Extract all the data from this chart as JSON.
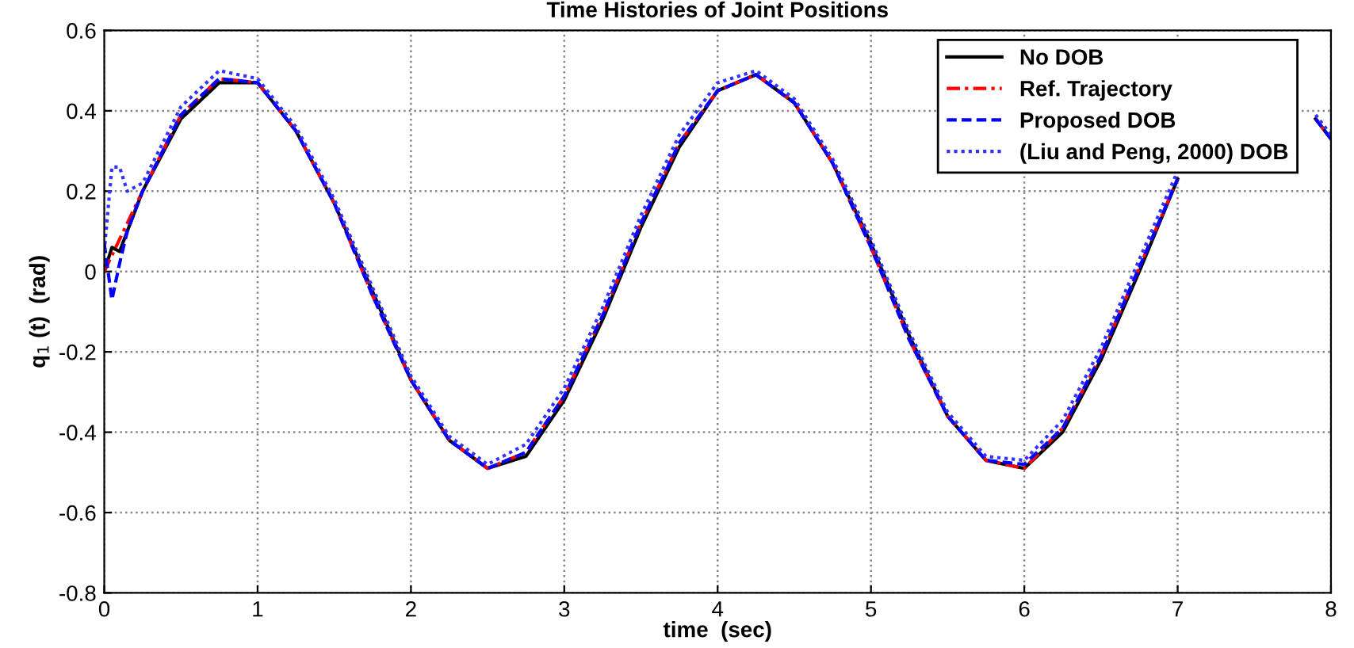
{
  "chart_data": {
    "type": "line",
    "title": "Time Histories of Joint Positions",
    "xlabel": "time  (sec)",
    "ylabel": "q$_{1}$ (t)  (rad)",
    "x": [
      0,
      0.05,
      0.1,
      0.15,
      0.25,
      0.5,
      0.75,
      1.0,
      1.25,
      1.5,
      1.75,
      2.0,
      2.25,
      2.5,
      2.75,
      3.0,
      3.25,
      3.5,
      3.75,
      4.0,
      4.25,
      4.5,
      4.75,
      5.0,
      5.25,
      5.5,
      5.75,
      6.0,
      6.25,
      6.5,
      6.75,
      7.0,
      7.25,
      7.5,
      7.75,
      7.9,
      8.0
    ],
    "series": [
      {
        "name": "No DOB",
        "color": "#000000",
        "line_style": "solid",
        "values": [
          0,
          0.06,
          0.05,
          0.1,
          0.2,
          0.38,
          0.47,
          0.47,
          0.35,
          0.17,
          -0.05,
          -0.27,
          -0.42,
          -0.49,
          -0.46,
          -0.32,
          -0.12,
          0.11,
          0.31,
          0.45,
          0.49,
          0.42,
          0.27,
          0.07,
          -0.16,
          -0.36,
          -0.47,
          -0.49,
          -0.4,
          -0.22,
          0,
          0.23,
          null,
          null,
          null,
          0.38,
          0.33
        ]
      },
      {
        "name": "Ref. Trajectory",
        "color": "#ff0000",
        "line_style": "dashdot",
        "values": [
          0,
          0.04,
          0.08,
          0.12,
          0.2,
          0.39,
          0.48,
          0.47,
          0.35,
          0.17,
          -0.06,
          -0.27,
          -0.42,
          -0.49,
          -0.45,
          -0.31,
          -0.11,
          0.12,
          0.32,
          0.45,
          0.49,
          0.42,
          0.27,
          0.06,
          -0.17,
          -0.36,
          -0.47,
          -0.49,
          -0.39,
          -0.21,
          0.01,
          0.23,
          null,
          null,
          null,
          0.38,
          0.33
        ]
      },
      {
        "name": "Proposed DOB",
        "color": "#0000ff",
        "line_style": "dashed",
        "values": [
          0.07,
          -0.07,
          0.02,
          0.1,
          0.2,
          0.39,
          0.48,
          0.47,
          0.35,
          0.17,
          -0.06,
          -0.27,
          -0.42,
          -0.49,
          -0.45,
          -0.31,
          -0.11,
          0.12,
          0.32,
          0.45,
          0.49,
          0.42,
          0.27,
          0.06,
          -0.17,
          -0.36,
          -0.47,
          -0.48,
          -0.39,
          -0.21,
          0.01,
          0.23,
          null,
          null,
          null,
          0.38,
          0.33
        ]
      },
      {
        "name": "(Liu and Peng, 2000) DOB",
        "color": "#3333ff",
        "line_style": "dotted",
        "values": [
          0.05,
          0.26,
          0.26,
          0.2,
          0.22,
          0.41,
          0.5,
          0.48,
          0.36,
          0.18,
          -0.04,
          -0.26,
          -0.41,
          -0.48,
          -0.43,
          -0.29,
          -0.09,
          0.14,
          0.34,
          0.47,
          0.5,
          0.43,
          0.28,
          0.08,
          -0.15,
          -0.35,
          -0.46,
          -0.47,
          -0.37,
          -0.19,
          0.03,
          0.25,
          null,
          null,
          null,
          0.39,
          0.34
        ]
      }
    ],
    "xlim": [
      0,
      8
    ],
    "xticks": [
      0,
      1,
      2,
      3,
      4,
      5,
      6,
      7,
      8
    ],
    "ylim": [
      -0.8,
      0.6
    ],
    "yticks": [
      -0.8,
      -0.6,
      -0.4,
      -0.2,
      0,
      0.2,
      0.4,
      0.6
    ],
    "grid": true,
    "legend": "top right",
    "marker": "none"
  }
}
